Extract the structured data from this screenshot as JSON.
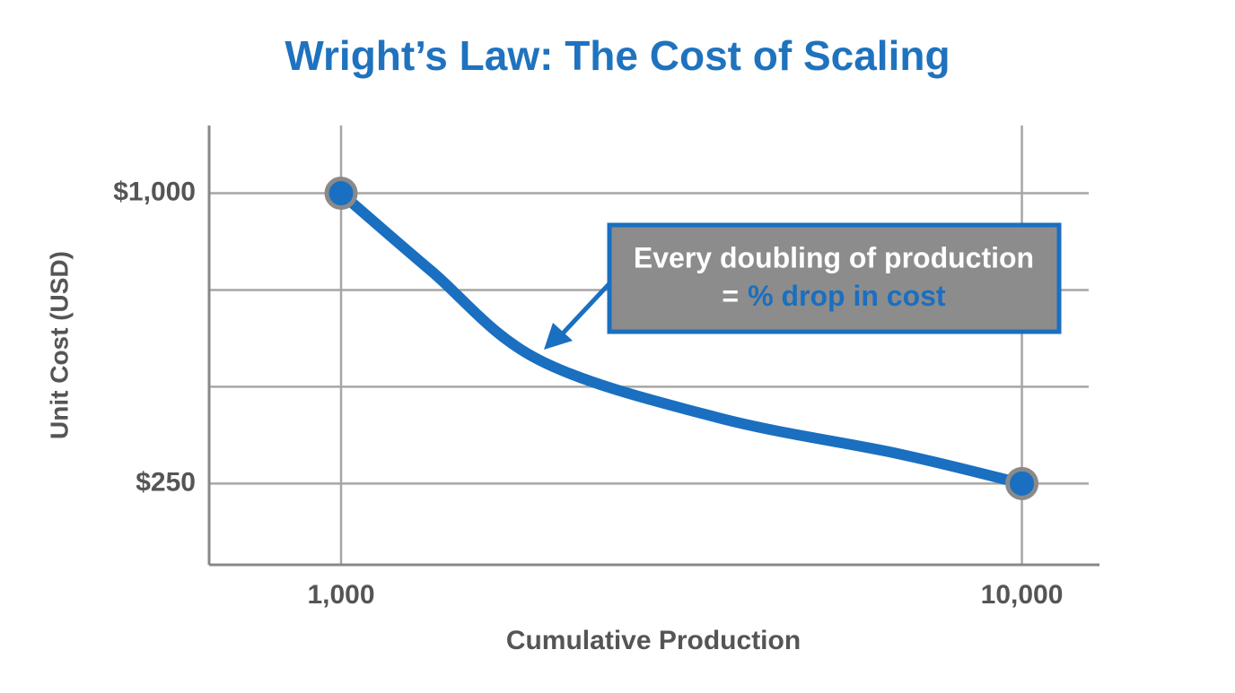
{
  "chart_data": {
    "type": "line",
    "title": "Wright’s Law: The Cost of Scaling",
    "x_label": "Cumulative Production",
    "y_label": "Unit Cost (USD)",
    "x": [
      1000,
      1355,
      1950,
      3580,
      6580,
      10000
    ],
    "series": [
      {
        "name": "Unit Cost",
        "color": "#1a6fc0",
        "values": [
          1000,
          800,
          570,
          420,
          327,
          250
        ]
      }
    ],
    "x_log": true,
    "xlim": [
      640,
      13000
    ],
    "xticks": [
      {
        "value": 1000,
        "label": "1,000"
      },
      {
        "value": 10000,
        "label": "10,000"
      }
    ],
    "ylim": [
      40,
      1175
    ],
    "yticks": [
      {
        "value": 250,
        "label": "$250"
      },
      {
        "value": 1000,
        "label": "$1,000"
      }
    ],
    "ygrid": [
      250,
      500,
      750,
      1000
    ],
    "grid": true,
    "annotation": {
      "line1": "Every doubling of production",
      "line2_prefix": "=",
      "line2_highlight": "% drop in cost"
    }
  }
}
